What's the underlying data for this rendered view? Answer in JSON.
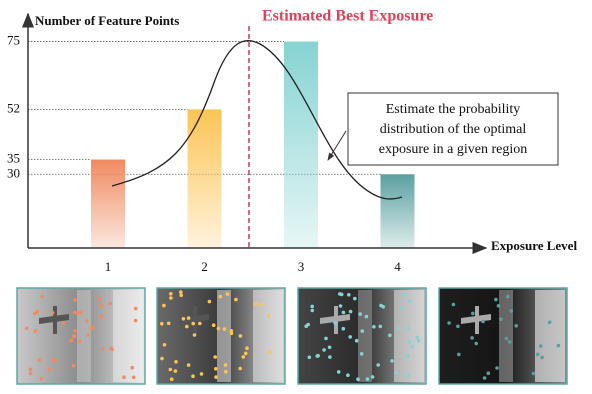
{
  "chart_data": {
    "type": "bar",
    "title": "Estimated Best Exposure",
    "y_label": "Number of Feature Points",
    "x_label": "Exposure Level",
    "annotation": [
      "Estimate the probability",
      "distribution of the optimal",
      "exposure in a given region"
    ],
    "categories": [
      "1",
      "2",
      "3",
      "4"
    ],
    "values": [
      35,
      52,
      75,
      30
    ],
    "colors": [
      "#f08a60",
      "#fcc455",
      "#86d3d3",
      "#5a9fa0"
    ],
    "ylim": [
      5,
      84
    ],
    "yticks": [
      30,
      35,
      52,
      75
    ],
    "grid": true
  }
}
